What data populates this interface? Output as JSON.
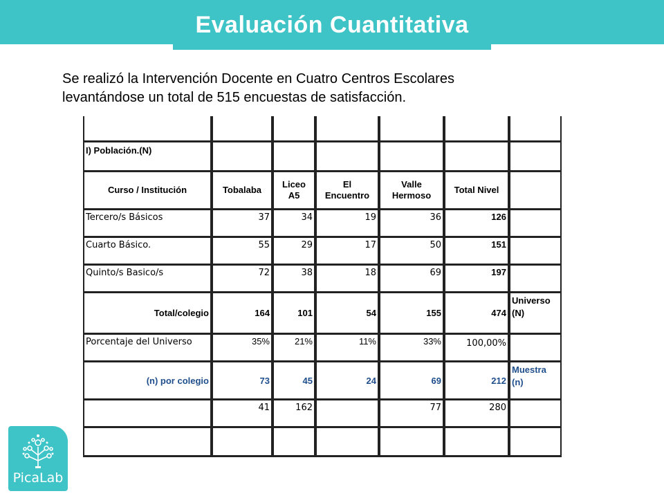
{
  "header": {
    "title": "Evaluación Cuantitativa"
  },
  "intro": {
    "line1": "Se realizó la Intervención Docente en Cuatro Centros Escolares",
    "line2": "levantándose un total de 515  encuestas de satisfacción."
  },
  "table": {
    "section_title": "I) Población.(N)",
    "headers": [
      "Curso / Institución",
      "Tobalaba",
      "Liceo A5",
      "El Encuentro",
      "Valle Hermoso",
      "Total Nivel"
    ],
    "header_lines": {
      "liceo": [
        "Liceo",
        "A5"
      ],
      "encuentro": [
        "El",
        "Encuentro"
      ],
      "valle": [
        "Valle",
        "Hermoso"
      ]
    },
    "rows": [
      {
        "label": "Tercero/s Básicos",
        "values": [
          "37",
          "34",
          "19",
          "36"
        ],
        "total": "126"
      },
      {
        "label": "Cuarto Básico.",
        "values": [
          "55",
          "29",
          "17",
          "50"
        ],
        "total": "151"
      },
      {
        "label": "Quinto/s Basico/s",
        "values": [
          "72",
          "38",
          "18",
          "69"
        ],
        "total": "197"
      }
    ],
    "total_row": {
      "label": "Total/colegio",
      "values": [
        "164",
        "101",
        "54",
        "155"
      ],
      "total": "474",
      "side_label": "Universo",
      "side_sub": "(N)"
    },
    "pct_row": {
      "label": "Porcentaje del Universo",
      "values": [
        "35%",
        "21%",
        "11%",
        "33%"
      ],
      "total": "100,00%"
    },
    "n_row": {
      "label": "(n) por colegio",
      "values": [
        "73",
        "45",
        "24",
        "69"
      ],
      "total": "212",
      "side_label": "Muestra",
      "side_sub": "(n)"
    },
    "extra_row": {
      "values": [
        "41",
        "162",
        "",
        "77"
      ],
      "total": "280"
    }
  },
  "logo": {
    "text": "PicaLab",
    "color": "#3ec3c6"
  },
  "colors": {
    "accent": "#3ec3c6",
    "blue_text": "#1f4e8c"
  }
}
